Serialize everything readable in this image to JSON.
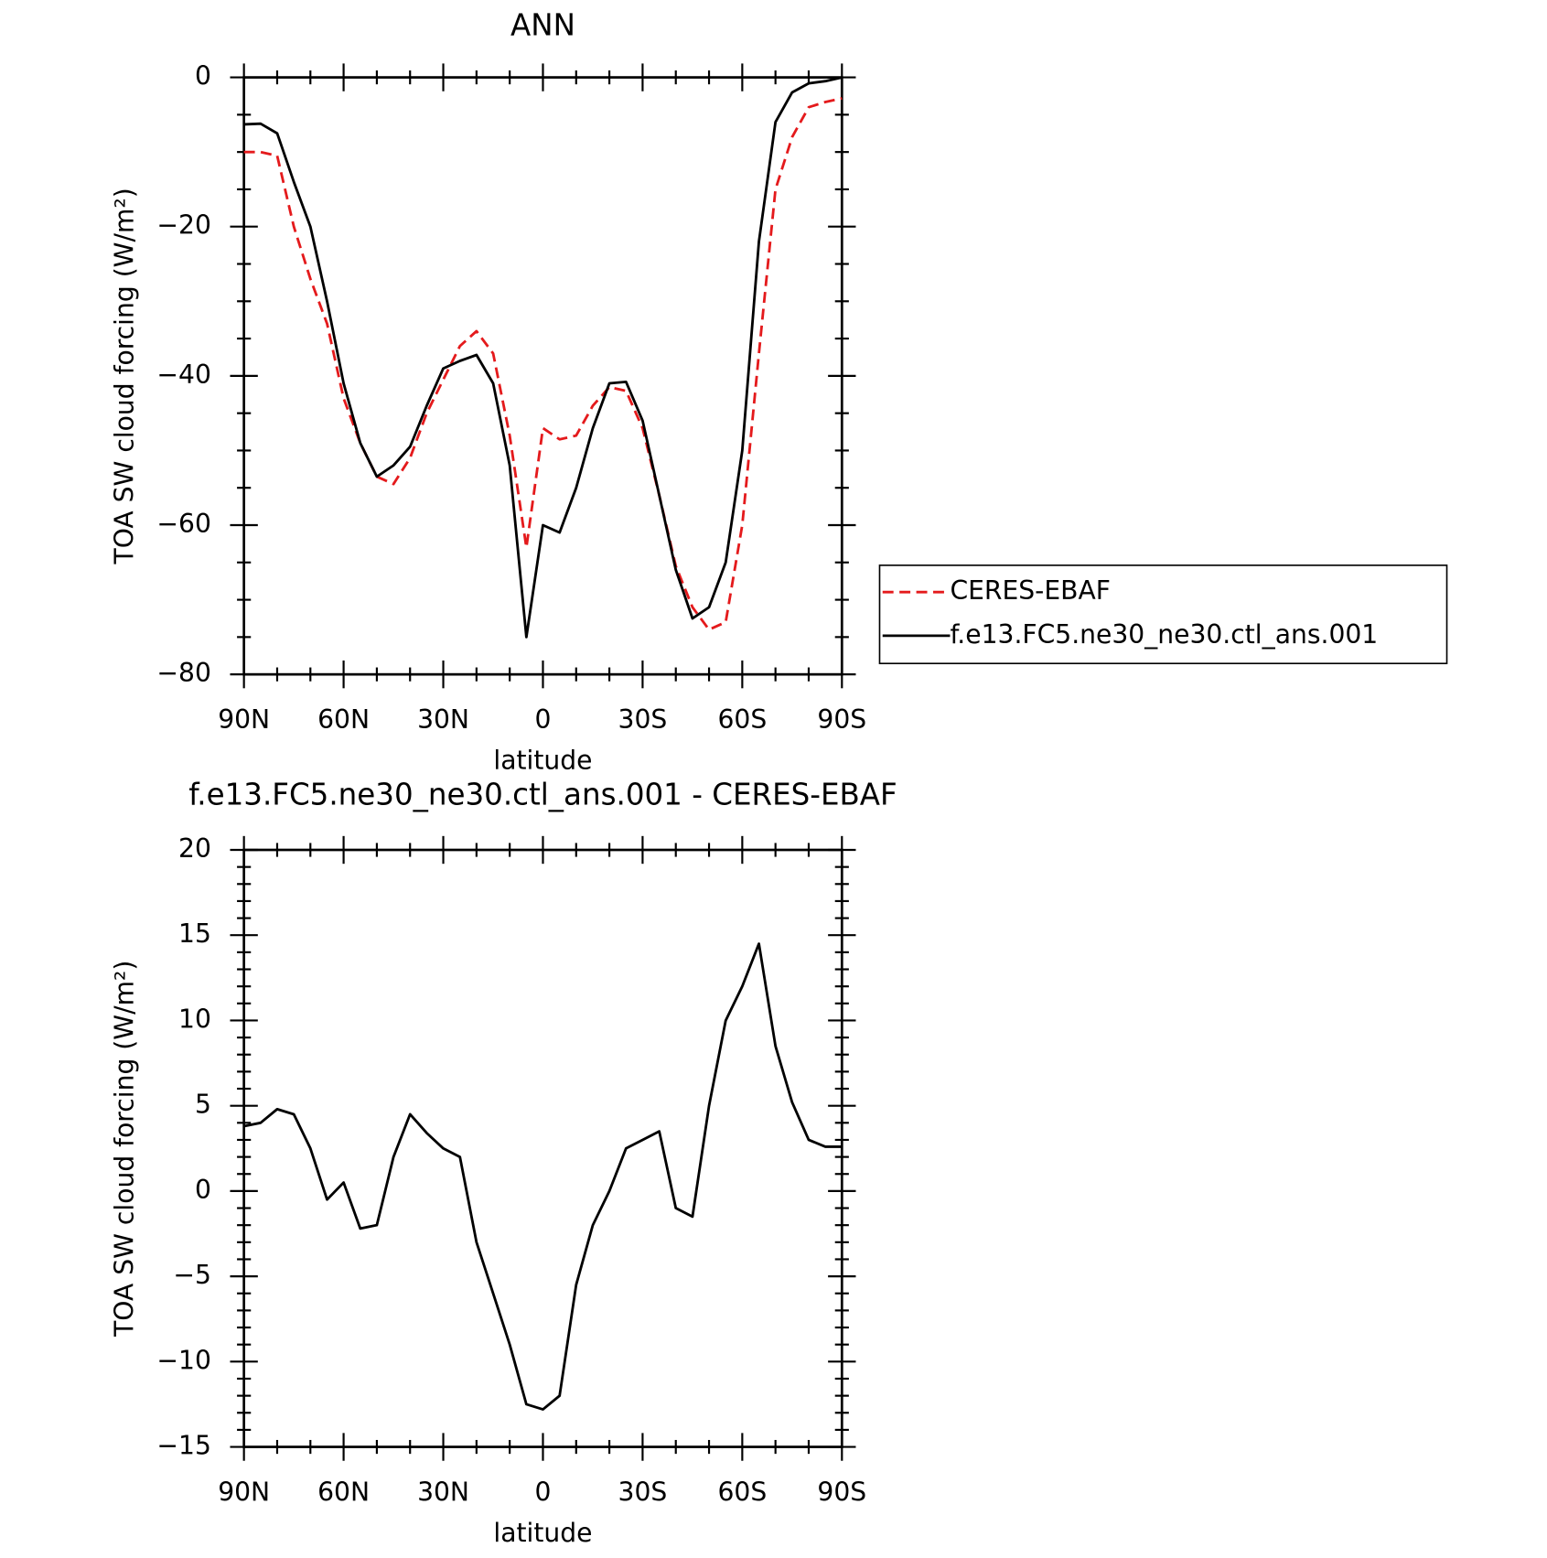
{
  "chart_data": [
    {
      "type": "line",
      "title": "ANN",
      "xlabel": "latitude",
      "ylabel": "TOA SW cloud forcing (W/m²)",
      "x": [
        90,
        85,
        80,
        75,
        70,
        65,
        60,
        55,
        50,
        45,
        40,
        35,
        30,
        25,
        20,
        15,
        10,
        5,
        0,
        -5,
        -10,
        -15,
        -20,
        -25,
        -30,
        -35,
        -40,
        -45,
        -50,
        -55,
        -60,
        -65,
        -70,
        -75,
        -80,
        -85,
        -90
      ],
      "series": [
        {
          "name": "CERES-EBAF",
          "color": "#e41a1c",
          "linestyle": "dashed",
          "values": [
            -10,
            -10,
            -10.5,
            -20,
            -27,
            -33,
            -43,
            -49,
            -53.5,
            -54.5,
            -51,
            -45,
            -40.5,
            -36,
            -34,
            -37,
            -48,
            -63,
            -47,
            -48.5,
            -48,
            -44,
            -41.5,
            -42,
            -47,
            -56,
            -65.5,
            -71,
            -74,
            -73,
            -60,
            -37,
            -15,
            -8,
            -4,
            -3.3,
            -2.8
          ]
        },
        {
          "name": "f.e13.FC5.ne30_ne30.ctl_ans.001",
          "color": "#000000",
          "linestyle": "solid",
          "values": [
            -6.3,
            -6.2,
            -7.5,
            -14,
            -20,
            -30,
            -41,
            -49,
            -53.5,
            -52,
            -49.5,
            -44,
            -39,
            -38,
            -37.2,
            -41,
            -52,
            -75,
            -60,
            -61,
            -55,
            -47,
            -41,
            -40.8,
            -46,
            -56,
            -66,
            -72.5,
            -71,
            -65,
            -50,
            -22,
            -6,
            -2,
            -0.8,
            -0.5,
            0
          ]
        }
      ],
      "xlim": [
        90,
        -90
      ],
      "xticks": [
        {
          "value": 90,
          "label": "90N"
        },
        {
          "value": 60,
          "label": "60N"
        },
        {
          "value": 30,
          "label": "30N"
        },
        0,
        {
          "value": -30,
          "label": "30S"
        },
        {
          "value": -60,
          "label": "60S"
        },
        {
          "value": -90,
          "label": "90S"
        }
      ],
      "ylim": [
        -80,
        0
      ],
      "yticks": [
        -80,
        -60,
        -40,
        -20,
        0
      ],
      "legend": "outside-right"
    },
    {
      "type": "line",
      "title": "f.e13.FC5.ne30_ne30.ctl_ans.001 - CERES-EBAF",
      "xlabel": "latitude",
      "ylabel": "TOA SW cloud forcing (W/m²)",
      "x": [
        90,
        85,
        80,
        75,
        70,
        65,
        60,
        55,
        50,
        45,
        40,
        35,
        30,
        25,
        20,
        15,
        10,
        5,
        0,
        -5,
        -10,
        -15,
        -20,
        -25,
        -30,
        -35,
        -40,
        -45,
        -50,
        -55,
        -60,
        -65,
        -70,
        -75,
        -80,
        -85,
        -90
      ],
      "series": [
        {
          "color": "#000000",
          "linestyle": "solid",
          "values": [
            3.8,
            4,
            4.8,
            4.5,
            2.5,
            -0.5,
            0.5,
            -2.2,
            -2,
            2,
            4.5,
            3.4,
            2.5,
            2,
            -3,
            -6,
            -9,
            -12.5,
            -12.8,
            -12,
            -5.5,
            -2,
            0,
            2.5,
            3,
            3.5,
            -1,
            -1.5,
            5,
            10,
            12,
            14.5,
            8.5,
            5.2,
            3,
            2.6,
            2.6
          ]
        }
      ],
      "xlim": [
        90,
        -90
      ],
      "xticks": [
        {
          "value": 90,
          "label": "90N"
        },
        {
          "value": 60,
          "label": "60N"
        },
        {
          "value": 30,
          "label": "30N"
        },
        0,
        {
          "value": -30,
          "label": "30S"
        },
        {
          "value": -60,
          "label": "60S"
        },
        {
          "value": -90,
          "label": "90S"
        }
      ],
      "ylim": [
        -15,
        20
      ],
      "yticks": [
        -15,
        -10,
        -5,
        0,
        5,
        10,
        15,
        20
      ]
    }
  ]
}
